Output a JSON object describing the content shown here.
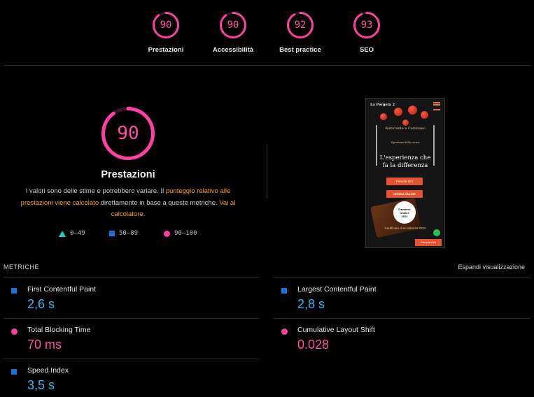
{
  "top_gauges": [
    {
      "score": "90",
      "label": "Prestazioni",
      "fraction": 0.9
    },
    {
      "score": "90",
      "label": "Accessibilità",
      "fraction": 0.9
    },
    {
      "score": "92",
      "label": "Best practice",
      "fraction": 0.92
    },
    {
      "score": "93",
      "label": "SEO",
      "fraction": 0.93
    }
  ],
  "main_gauge": {
    "score": "90",
    "fraction": 0.9,
    "title": "Prestazioni"
  },
  "description": {
    "part1": "I valori sono delle stime e potrebbero variare. Il ",
    "link1": "punteggio relativo alle prestazioni viene calcolato",
    "part2": " direttamente in base a queste metriche. ",
    "link2": "Vai al calcolatore",
    "part3": "."
  },
  "legend": [
    {
      "range": "0–49",
      "shape": "triangle",
      "color": "#17d3c4"
    },
    {
      "range": "50–89",
      "shape": "square",
      "color": "#1d6fd8"
    },
    {
      "range": "90–100",
      "shape": "circle",
      "color": "#ff3fa2"
    }
  ],
  "screenshot": {
    "brand": "La Pergola 2",
    "line1": "Ristorante a Carmiano",
    "line2": "Il profumo della cucina",
    "headline1": "L'esperienza che",
    "headline2": "fa la differenza",
    "btn_book": "Prenota Ora",
    "btn_order": "ORDINA ONLINE",
    "badge_line1": "Travelers'",
    "badge_line2": "Choice",
    "badge_line3": "2022",
    "certificate": "Certificato di eccellenza 2022",
    "btn_book_small": "Prenota Ora"
  },
  "metrics_section": {
    "title": "METRICHE",
    "expand": "Espandi visualizzazione"
  },
  "metrics": [
    {
      "name": "First Contentful Paint",
      "value": "2,6 s",
      "status": "average"
    },
    {
      "name": "Largest Contentful Paint",
      "value": "2,8 s",
      "status": "average"
    },
    {
      "name": "Total Blocking Time",
      "value": "70 ms",
      "status": "good"
    },
    {
      "name": "Cumulative Layout Shift",
      "value": "0.028",
      "status": "good"
    },
    {
      "name": "Speed Index",
      "value": "3,5 s",
      "status": "average"
    }
  ],
  "colors": {
    "good": "#ff3fa2",
    "average": "#1d6fd8",
    "value_good": "#ff4fa8",
    "value_average": "#2fb8f2"
  }
}
